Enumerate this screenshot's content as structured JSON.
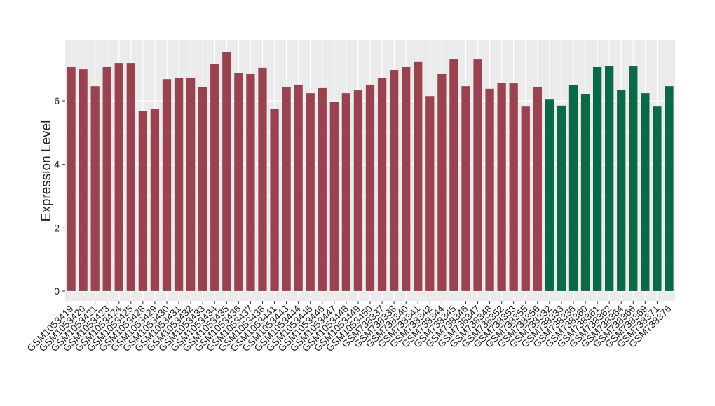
{
  "chart_data": {
    "type": "bar",
    "y_label": "Expression Level",
    "categories": [
      "GSM1053419",
      "GSM1053420",
      "GSM1053421",
      "GSM1053423",
      "GSM1053424",
      "GSM1053425",
      "GSM1053428",
      "GSM1053429",
      "GSM1053430",
      "GSM1053431",
      "GSM1053432",
      "GSM1053433",
      "GSM1053434",
      "GSM1053435",
      "GSM1053436",
      "GSM1053437",
      "GSM1053438",
      "GSM1053441",
      "GSM1053443",
      "GSM1053444",
      "GSM1053445",
      "GSM1053446",
      "GSM1053447",
      "GSM1053448",
      "GSM1053449",
      "GSM1053450",
      "GSM738337",
      "GSM738338",
      "GSM738340",
      "GSM738341",
      "GSM738342",
      "GSM738344",
      "GSM738345",
      "GSM738346",
      "GSM738347",
      "GSM738348",
      "GSM738352",
      "GSM738353",
      "GSM738355",
      "GSM738356",
      "GSM738332",
      "GSM738333",
      "GSM738336",
      "GSM738360",
      "GSM738361",
      "GSM738362",
      "GSM738364",
      "GSM738366",
      "GSM738369",
      "GSM738371",
      "GSM738376"
    ],
    "values": [
      7.06,
      6.99,
      6.46,
      7.06,
      7.19,
      7.19,
      5.67,
      5.74,
      6.68,
      6.73,
      6.73,
      6.44,
      7.15,
      7.54,
      6.88,
      6.84,
      7.04,
      5.74,
      6.44,
      6.51,
      6.24,
      6.4,
      5.98,
      6.24,
      6.33,
      6.51,
      6.71,
      6.97,
      7.06,
      7.24,
      6.15,
      6.84,
      7.32,
      6.46,
      7.3,
      6.38,
      6.57,
      6.55,
      5.82,
      6.44,
      6.04,
      5.85,
      6.49,
      6.22,
      7.06,
      7.1,
      6.35,
      7.08,
      6.24,
      5.82,
      6.46
    ],
    "colors": [
      "#9a4350",
      "#9a4350",
      "#9a4350",
      "#9a4350",
      "#9a4350",
      "#9a4350",
      "#9a4350",
      "#9a4350",
      "#9a4350",
      "#9a4350",
      "#9a4350",
      "#9a4350",
      "#9a4350",
      "#9a4350",
      "#9a4350",
      "#9a4350",
      "#9a4350",
      "#9a4350",
      "#9a4350",
      "#9a4350",
      "#9a4350",
      "#9a4350",
      "#9a4350",
      "#9a4350",
      "#9a4350",
      "#9a4350",
      "#9a4350",
      "#9a4350",
      "#9a4350",
      "#9a4350",
      "#9a4350",
      "#9a4350",
      "#9a4350",
      "#9a4350",
      "#9a4350",
      "#9a4350",
      "#9a4350",
      "#9a4350",
      "#9a4350",
      "#9a4350",
      "#0b6a45",
      "#0b6a45",
      "#0b6a45",
      "#0b6a45",
      "#0b6a45",
      "#0b6a45",
      "#0b6a45",
      "#0b6a45",
      "#0b6a45",
      "#0b6a45",
      "#0b6a45"
    ],
    "ylim": [
      -0.31,
      7.92
    ],
    "yticks": [
      0,
      2,
      4,
      6
    ],
    "grid": true
  }
}
